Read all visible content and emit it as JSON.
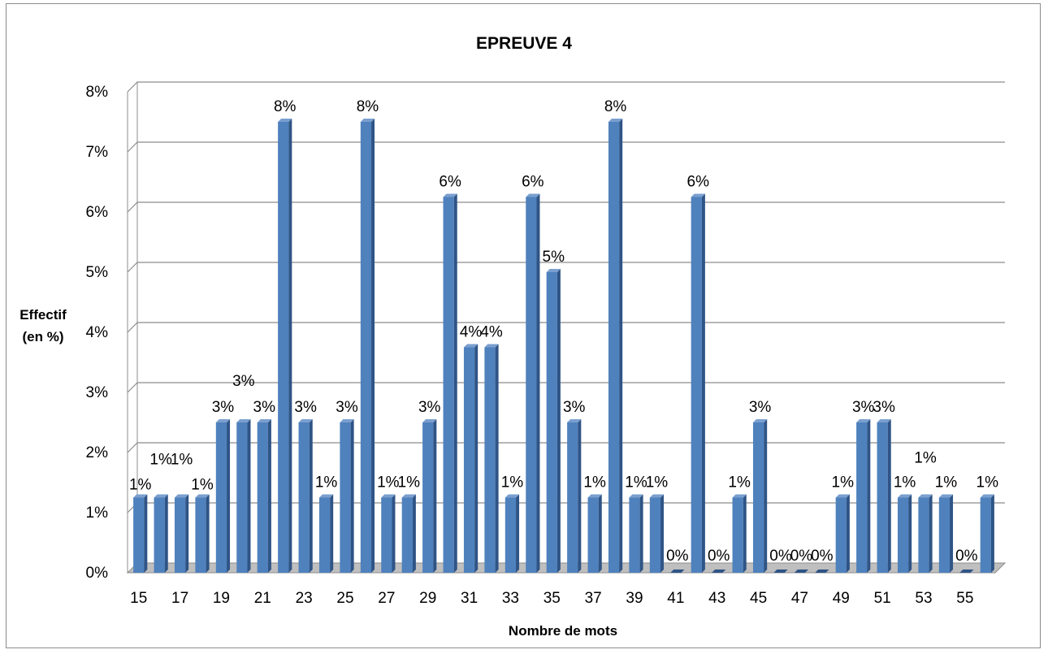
{
  "colors": {
    "bar_front": "#4f81bd",
    "bar_side": "#2f5486",
    "bar_top": "#7a9fcf",
    "gridline": "#8c8c8c",
    "floor": "#bfbfbf",
    "wall_edge": "#8c8c8c"
  },
  "chart_data": {
    "type": "bar",
    "title": "EPREUVE 4",
    "xlabel": "Nombre de mots",
    "ylabel_lines": [
      "Effectif",
      "(en %)"
    ],
    "ylim": [
      0,
      8
    ],
    "y_ticks": [
      "0%",
      "1%",
      "2%",
      "3%",
      "4%",
      "5%",
      "6%",
      "7%",
      "8%"
    ],
    "grid": true,
    "style": "3d-clustered-column",
    "categories": [
      "15",
      "16",
      "17",
      "18",
      "19",
      "20",
      "21",
      "22",
      "23",
      "24",
      "25",
      "26",
      "27",
      "28",
      "29",
      "30",
      "31",
      "32",
      "33",
      "34",
      "35",
      "36",
      "37",
      "38",
      "39",
      "40",
      "41",
      "42",
      "43",
      "44",
      "45",
      "46",
      "47",
      "48",
      "49",
      "50",
      "51",
      "52",
      "53",
      "54",
      "55",
      "56"
    ],
    "x_tick_labels": [
      "15",
      "17",
      "19",
      "21",
      "23",
      "25",
      "27",
      "29",
      "31",
      "33",
      "35",
      "37",
      "39",
      "41",
      "43",
      "45",
      "47",
      "49",
      "51",
      "53",
      "55"
    ],
    "values": [
      1.25,
      1.25,
      1.25,
      1.25,
      2.5,
      2.5,
      2.5,
      7.5,
      2.5,
      1.25,
      2.5,
      7.5,
      1.25,
      1.25,
      2.5,
      6.25,
      3.75,
      3.75,
      1.25,
      6.25,
      5,
      2.5,
      1.25,
      7.5,
      1.25,
      1.25,
      0,
      6.25,
      0,
      1.25,
      2.5,
      0,
      0,
      0,
      1.25,
      2.5,
      2.5,
      1.25,
      1.25,
      1.25,
      0,
      1.25
    ],
    "data_labels": [
      "1%",
      "1%",
      "1%",
      "1%",
      "3%",
      "3%",
      "3%",
      "8%",
      "3%",
      "1%",
      "3%",
      "8%",
      "1%",
      "1%",
      "3%",
      "6%",
      "4%",
      "4%",
      "1%",
      "6%",
      "5%",
      "3%",
      "1%",
      "8%",
      "1%",
      "1%",
      "0%",
      "6%",
      "0%",
      "1%",
      "3%",
      "0%",
      "0%",
      "0%",
      "1%",
      "3%",
      "3%",
      "1%",
      "1%",
      "1%",
      "0%",
      "1%"
    ]
  }
}
